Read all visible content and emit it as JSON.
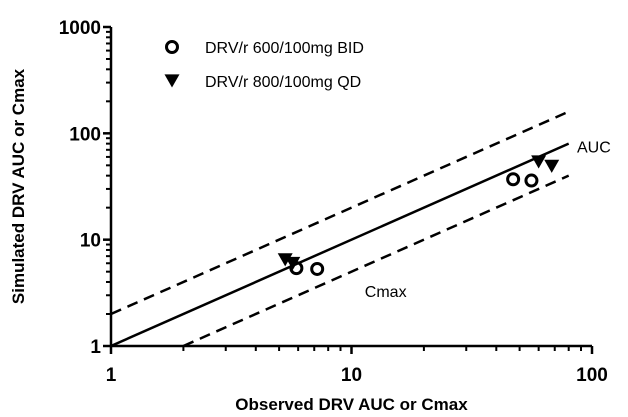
{
  "chart_data": {
    "type": "scatter",
    "xlabel": "Observed DRV AUC or Cmax",
    "ylabel": "Simulated DRV AUC or Cmax",
    "xscale": "log",
    "yscale": "log",
    "xlim": [
      1,
      100
    ],
    "ylim": [
      1,
      1000
    ],
    "x_ticks": [
      1,
      10,
      100
    ],
    "x_tick_labels": [
      "1",
      "10",
      "100"
    ],
    "y_ticks": [
      1,
      10,
      100,
      1000
    ],
    "y_tick_labels": [
      "1",
      "10",
      "100",
      "1000"
    ],
    "grid": false,
    "legend_position": "top-left",
    "series": [
      {
        "name": "DRV/r 600/100mg BID",
        "marker": "open-circle",
        "points": [
          {
            "x": 5.9,
            "y": 5.4
          },
          {
            "x": 7.2,
            "y": 5.3
          },
          {
            "x": 47,
            "y": 37
          },
          {
            "x": 56,
            "y": 36
          }
        ]
      },
      {
        "name": "DRV/r 800/100mg QD",
        "marker": "filled-triangle-down",
        "points": [
          {
            "x": 5.3,
            "y": 6.6
          },
          {
            "x": 5.7,
            "y": 6.1
          },
          {
            "x": 60,
            "y": 55
          },
          {
            "x": 68,
            "y": 50
          }
        ]
      }
    ],
    "reference_lines": [
      {
        "style": "solid",
        "slope_factor": 1
      },
      {
        "style": "dashed",
        "slope_factor": 2
      },
      {
        "style": "dashed",
        "slope_factor": 0.5
      }
    ],
    "annotations": [
      {
        "text": "AUC",
        "x": 90,
        "y": 75
      },
      {
        "text": "Cmax",
        "x": 11.8,
        "y": 3.3
      }
    ],
    "colors": {
      "marks": "#000000",
      "background": "#ffffff"
    }
  }
}
